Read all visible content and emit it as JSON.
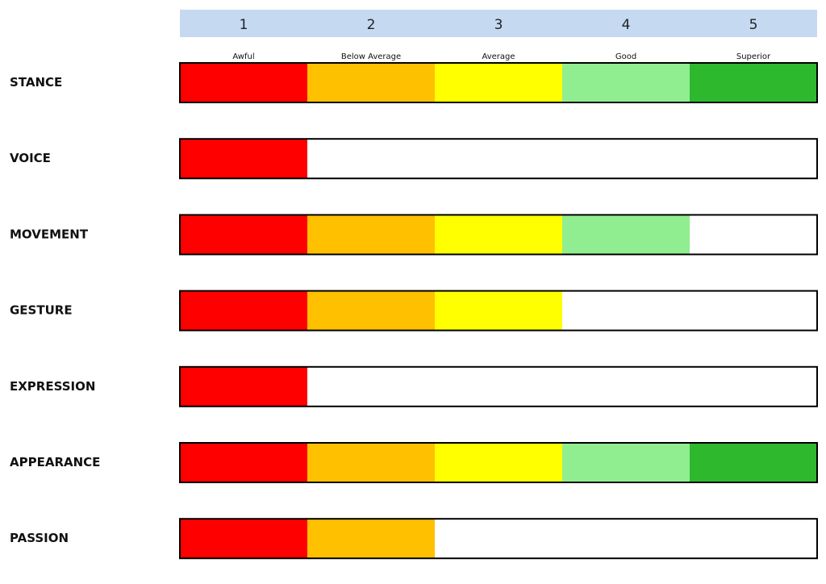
{
  "chart_data": {
    "type": "bar",
    "orientation": "horizontal",
    "categories": [
      "STANCE",
      "VOICE",
      "MOVEMENT",
      "GESTURE",
      "EXPRESSION",
      "APPEARANCE",
      "PASSION"
    ],
    "values": [
      5,
      1,
      4,
      3,
      1,
      5,
      2
    ],
    "xlim": [
      0,
      5
    ],
    "xticks": [
      1,
      2,
      3,
      4,
      5
    ],
    "level_labels": [
      "Awful",
      "Below Average",
      "Average",
      "Good",
      "Superior"
    ],
    "level_colors": [
      "#ff0000",
      "#ffc000",
      "#ffff00",
      "#90ee90",
      "#2eb82e"
    ],
    "header_color": "#c5d9f1"
  }
}
